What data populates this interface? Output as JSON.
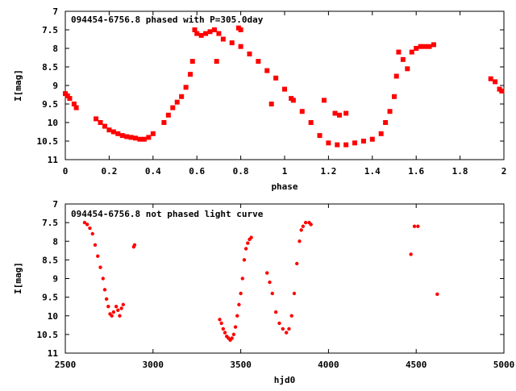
{
  "chart_data": [
    {
      "type": "scatter",
      "title": "094454-6756.8 phased with P=305.0day",
      "xlabel": "phase",
      "ylabel": "I[mag]",
      "xlim": [
        0,
        2
      ],
      "ylim": [
        11,
        7
      ],
      "y_inverted": true,
      "x_ticks": [
        0,
        0.2,
        0.4,
        0.6,
        0.8,
        1,
        1.2,
        1.4,
        1.6,
        1.8,
        2
      ],
      "x_tick_labels": [
        "0",
        "0.2",
        "0.4",
        "0.6",
        "0.8",
        "1",
        "1.2",
        "1.4",
        "1.6",
        "1.8",
        "2"
      ],
      "y_ticks": [
        7,
        7.5,
        8,
        8.5,
        9,
        9.5,
        10,
        10.5,
        11
      ],
      "y_tick_labels": [
        "7",
        "7.5",
        "8",
        "8.5",
        "9",
        "9.5",
        "10",
        "10.5",
        "11"
      ],
      "marker": "square",
      "color": "#ff0000",
      "grid": false,
      "series": [
        {
          "x": [
            0.0,
            0.01,
            0.02,
            0.04,
            0.05,
            0.14,
            0.16,
            0.18,
            0.2,
            0.22,
            0.24,
            0.26,
            0.28,
            0.3,
            0.32,
            0.34,
            0.36,
            0.38,
            0.4,
            0.45,
            0.47,
            0.49,
            0.51,
            0.53,
            0.55,
            0.57,
            0.58,
            0.59,
            0.6,
            0.62,
            0.64,
            0.66,
            0.68,
            0.7,
            0.72,
            0.76,
            0.8,
            0.84,
            0.88,
            0.92,
            0.96,
            1.0,
            1.04,
            1.08,
            1.12,
            1.16,
            1.2,
            1.24,
            1.28,
            1.32,
            1.36,
            1.4,
            1.44,
            1.46,
            1.48,
            1.5,
            1.51,
            1.52,
            1.54,
            1.56,
            1.58,
            1.6,
            1.62,
            1.64,
            1.66,
            1.68,
            1.94,
            1.96,
            1.98,
            1.99,
            0.69,
            0.79,
            0.8,
            0.94,
            1.03,
            1.18,
            1.23,
            1.25,
            1.28
          ],
          "y": [
            9.22,
            9.28,
            9.35,
            9.5,
            9.6,
            9.9,
            10.0,
            10.1,
            10.2,
            10.25,
            10.3,
            10.35,
            10.38,
            10.4,
            10.42,
            10.45,
            10.45,
            10.4,
            10.3,
            10.0,
            9.8,
            9.6,
            9.45,
            9.3,
            9.05,
            8.7,
            8.35,
            7.5,
            7.6,
            7.65,
            7.6,
            7.55,
            7.5,
            7.6,
            7.75,
            7.85,
            7.95,
            8.15,
            8.35,
            8.6,
            8.8,
            9.1,
            9.4,
            9.7,
            10.0,
            10.35,
            10.55,
            10.6,
            10.6,
            10.55,
            10.5,
            10.45,
            10.3,
            10.0,
            9.7,
            9.3,
            8.75,
            8.1,
            8.3,
            8.55,
            8.1,
            8.0,
            7.95,
            7.95,
            7.95,
            7.9,
            8.82,
            8.9,
            9.1,
            9.15,
            8.35,
            7.45,
            7.5,
            9.5,
            9.35,
            9.4,
            9.75,
            9.8,
            9.75
          ]
        }
      ]
    },
    {
      "type": "scatter",
      "title": "094454-6756.8 not phased light curve",
      "xlabel": "hjd0",
      "ylabel": "I[mag]",
      "xlim": [
        2500,
        5000
      ],
      "ylim": [
        11,
        7
      ],
      "y_inverted": true,
      "x_ticks": [
        2500,
        3000,
        3500,
        4000,
        4500,
        5000
      ],
      "x_tick_labels": [
        "2500",
        "3000",
        "3500",
        "4000",
        "4500",
        "5000"
      ],
      "y_ticks": [
        7,
        7.5,
        8,
        8.5,
        9,
        9.5,
        10,
        10.5,
        11
      ],
      "y_tick_labels": [
        "7",
        "7.5",
        "8",
        "8.5",
        "9",
        "9.5",
        "10",
        "10.5",
        "11"
      ],
      "marker": "dot",
      "color": "#ff0000",
      "grid": false,
      "series": [
        {
          "x": [
            2610,
            2625,
            2640,
            2655,
            2670,
            2685,
            2700,
            2715,
            2725,
            2735,
            2745,
            2755,
            2765,
            2775,
            2790,
            2800,
            2810,
            2820,
            2830,
            2890,
            2895,
            3380,
            3390,
            3400,
            3410,
            3420,
            3430,
            3440,
            3450,
            3460,
            3470,
            3480,
            3490,
            3500,
            3510,
            3520,
            3530,
            3540,
            3550,
            3560,
            3650,
            3665,
            3680,
            3700,
            3720,
            3740,
            3760,
            3775,
            3790,
            3805,
            3820,
            3835,
            3845,
            3855,
            3870,
            3890,
            3900,
            4470,
            4490,
            4510,
            4620
          ],
          "y": [
            7.5,
            7.55,
            7.65,
            7.8,
            8.1,
            8.4,
            8.7,
            9.0,
            9.3,
            9.55,
            9.75,
            9.95,
            10.0,
            9.9,
            9.75,
            9.85,
            10.0,
            9.8,
            9.7,
            8.15,
            8.1,
            10.1,
            10.2,
            10.35,
            10.45,
            10.55,
            10.6,
            10.65,
            10.6,
            10.5,
            10.3,
            10.0,
            9.7,
            9.4,
            9.0,
            8.5,
            8.2,
            8.05,
            7.95,
            7.9,
            8.85,
            9.1,
            9.4,
            9.9,
            10.2,
            10.35,
            10.45,
            10.35,
            10.0,
            9.4,
            8.6,
            8.0,
            7.7,
            7.6,
            7.5,
            7.5,
            7.55,
            8.35,
            7.6,
            7.6,
            9.42
          ]
        }
      ]
    }
  ]
}
